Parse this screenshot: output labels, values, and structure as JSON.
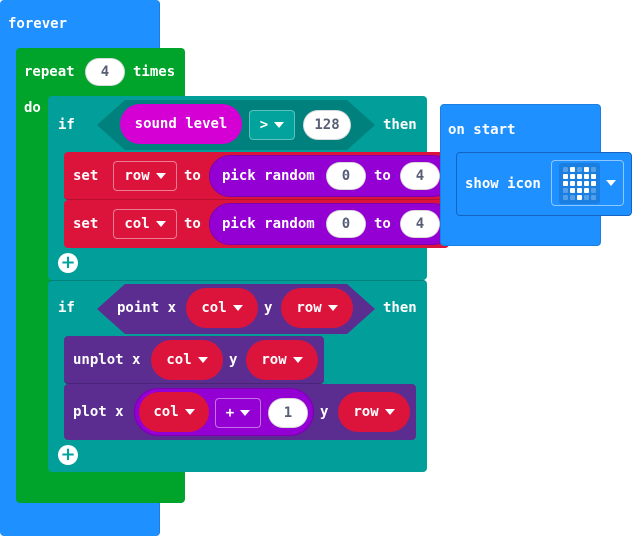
{
  "colors": {
    "basic": "#1e90ff",
    "loops": "#00a42a",
    "logic": "#029e9a",
    "variables": "#dc143c",
    "math": "#9400d3",
    "input": "#d400d4",
    "led": "#5c2d91",
    "white": "#ffffff"
  },
  "forever": {
    "label": "forever"
  },
  "repeat": {
    "label": "repeat",
    "count": "4",
    "suffix": "times",
    "do_label": "do"
  },
  "if1": {
    "if_label": "if",
    "sound_level": "sound level",
    "op": ">",
    "value": "128",
    "then_label": "then",
    "set1": {
      "set_label": "set",
      "var": "row",
      "to_label": "to",
      "pick_label": "pick random",
      "from": "0",
      "to_word": "to",
      "to": "4"
    },
    "set2": {
      "set_label": "set",
      "var": "col",
      "to_label": "to",
      "pick_label": "pick random",
      "from": "0",
      "to_word": "to",
      "to": "4"
    }
  },
  "if2": {
    "if_label": "if",
    "point_label": "point x",
    "x_var": "col",
    "y_label": "y",
    "y_var": "row",
    "then_label": "then",
    "unplot": {
      "label": "unplot x",
      "x_var": "col",
      "y_label": "y",
      "y_var": "row"
    },
    "plot": {
      "label": "plot x",
      "x_var": "col",
      "op": "+",
      "add": "1",
      "y_label": "y",
      "y_var": "row"
    }
  },
  "on_start": {
    "label": "on start",
    "show_icon": "show icon",
    "icon_name": "heart-icon",
    "icon_leds": [
      [
        0,
        1,
        0,
        1,
        0
      ],
      [
        1,
        1,
        1,
        1,
        1
      ],
      [
        1,
        1,
        1,
        1,
        1
      ],
      [
        0,
        1,
        1,
        1,
        0
      ],
      [
        0,
        0,
        1,
        0,
        0
      ]
    ]
  }
}
